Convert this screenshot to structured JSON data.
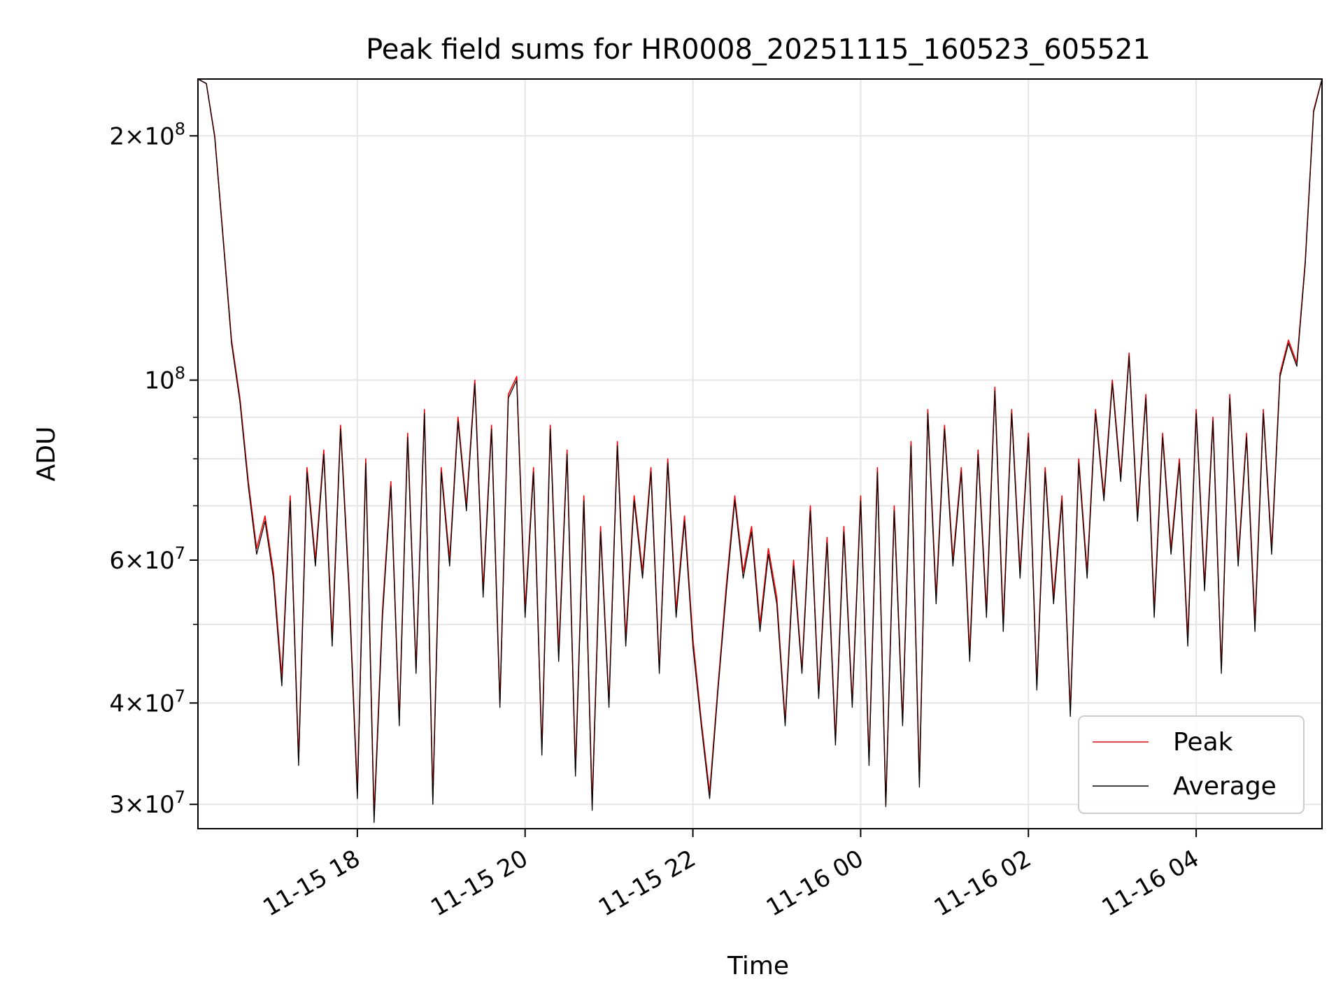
{
  "chart_data": {
    "type": "line",
    "title": "Peak field sums for HR0008_20251115_160523_605521",
    "xlabel": "Time",
    "ylabel": "ADU",
    "yscale": "log",
    "ylim": [
      28000000,
      235000000
    ],
    "xlim_hours": [
      16.1,
      29.5
    ],
    "grid": true,
    "legend_position": "lower-right",
    "x_ticks": [
      {
        "hour": 18,
        "label": "11-15 18"
      },
      {
        "hour": 20,
        "label": "11-15 20"
      },
      {
        "hour": 22,
        "label": "11-15 22"
      },
      {
        "hour": 24,
        "label": "11-16 00"
      },
      {
        "hour": 26,
        "label": "11-16 02"
      },
      {
        "hour": 28,
        "label": "11-16 04"
      }
    ],
    "y_major_ticks": [
      {
        "value": 100000000,
        "label": "10",
        "exp": "8",
        "mant": ""
      },
      {
        "value": 30000000,
        "label": "3",
        "exp": "7",
        "mant": "3×10"
      },
      {
        "value": 40000000,
        "label": "4",
        "exp": "7",
        "mant": "4×10"
      },
      {
        "value": 60000000,
        "label": "6",
        "exp": "7",
        "mant": "6×10"
      },
      {
        "value": 200000000,
        "label": "2",
        "exp": "8",
        "mant": "2×10"
      }
    ],
    "y_minor_ticks": [
      50000000,
      70000000,
      80000000,
      90000000
    ],
    "series": [
      {
        "name": "Peak",
        "color": "#ff0000",
        "points": [
          [
            16.1,
            235000000
          ],
          [
            16.2,
            232000000
          ],
          [
            16.3,
            200000000
          ],
          [
            16.4,
            150000000
          ],
          [
            16.5,
            112000000
          ],
          [
            16.6,
            95000000
          ],
          [
            16.7,
            75000000
          ],
          [
            16.8,
            62000000
          ],
          [
            16.9,
            68000000
          ],
          [
            17.0,
            58000000
          ],
          [
            17.1,
            43000000
          ],
          [
            17.2,
            72000000
          ],
          [
            17.3,
            34000000
          ],
          [
            17.4,
            78000000
          ],
          [
            17.5,
            60000000
          ],
          [
            17.6,
            82000000
          ],
          [
            17.7,
            48000000
          ],
          [
            17.8,
            88000000
          ],
          [
            17.9,
            56000000
          ],
          [
            18.0,
            31000000
          ],
          [
            18.1,
            80000000
          ],
          [
            18.2,
            29000000
          ],
          [
            18.3,
            52000000
          ],
          [
            18.4,
            75000000
          ],
          [
            18.5,
            38000000
          ],
          [
            18.6,
            86000000
          ],
          [
            18.7,
            44000000
          ],
          [
            18.8,
            92000000
          ],
          [
            18.9,
            30500000
          ],
          [
            19.0,
            78000000
          ],
          [
            19.1,
            60000000
          ],
          [
            19.2,
            90000000
          ],
          [
            19.3,
            70000000
          ],
          [
            19.4,
            100000000
          ],
          [
            19.5,
            55000000
          ],
          [
            19.6,
            88000000
          ],
          [
            19.7,
            40000000
          ],
          [
            19.8,
            96000000
          ],
          [
            19.9,
            101000000
          ],
          [
            20.0,
            52000000
          ],
          [
            20.1,
            78000000
          ],
          [
            20.2,
            35000000
          ],
          [
            20.3,
            88000000
          ],
          [
            20.4,
            46000000
          ],
          [
            20.5,
            82000000
          ],
          [
            20.6,
            33000000
          ],
          [
            20.7,
            72000000
          ],
          [
            20.8,
            30000000
          ],
          [
            20.9,
            66000000
          ],
          [
            21.0,
            40000000
          ],
          [
            21.1,
            84000000
          ],
          [
            21.2,
            48000000
          ],
          [
            21.3,
            72000000
          ],
          [
            21.4,
            58000000
          ],
          [
            21.5,
            78000000
          ],
          [
            21.6,
            44000000
          ],
          [
            21.7,
            80000000
          ],
          [
            21.8,
            52000000
          ],
          [
            21.9,
            68000000
          ],
          [
            22.0,
            48000000
          ],
          [
            22.1,
            38000000
          ],
          [
            22.2,
            31000000
          ],
          [
            22.3,
            42000000
          ],
          [
            22.4,
            56000000
          ],
          [
            22.5,
            72000000
          ],
          [
            22.6,
            58000000
          ],
          [
            22.7,
            66000000
          ],
          [
            22.8,
            50000000
          ],
          [
            22.9,
            62000000
          ],
          [
            23.0,
            54000000
          ],
          [
            23.1,
            38000000
          ],
          [
            23.2,
            60000000
          ],
          [
            23.3,
            44000000
          ],
          [
            23.4,
            70000000
          ],
          [
            23.5,
            41000000
          ],
          [
            23.6,
            64000000
          ],
          [
            23.7,
            36000000
          ],
          [
            23.8,
            66000000
          ],
          [
            23.9,
            40000000
          ],
          [
            24.0,
            72000000
          ],
          [
            24.1,
            34000000
          ],
          [
            24.2,
            78000000
          ],
          [
            24.3,
            30000000
          ],
          [
            24.4,
            70000000
          ],
          [
            24.5,
            38000000
          ],
          [
            24.6,
            84000000
          ],
          [
            24.7,
            32000000
          ],
          [
            24.8,
            92000000
          ],
          [
            24.9,
            54000000
          ],
          [
            25.0,
            88000000
          ],
          [
            25.1,
            60000000
          ],
          [
            25.2,
            78000000
          ],
          [
            25.3,
            46000000
          ],
          [
            25.4,
            82000000
          ],
          [
            25.5,
            52000000
          ],
          [
            25.6,
            98000000
          ],
          [
            25.7,
            50000000
          ],
          [
            25.8,
            92000000
          ],
          [
            25.9,
            58000000
          ],
          [
            26.0,
            86000000
          ],
          [
            26.1,
            42000000
          ],
          [
            26.2,
            78000000
          ],
          [
            26.3,
            54000000
          ],
          [
            26.4,
            72000000
          ],
          [
            26.5,
            39000000
          ],
          [
            26.6,
            80000000
          ],
          [
            26.7,
            58000000
          ],
          [
            26.8,
            92000000
          ],
          [
            26.9,
            72000000
          ],
          [
            27.0,
            100000000
          ],
          [
            27.1,
            76000000
          ],
          [
            27.2,
            108000000
          ],
          [
            27.3,
            68000000
          ],
          [
            27.4,
            96000000
          ],
          [
            27.5,
            52000000
          ],
          [
            27.6,
            86000000
          ],
          [
            27.7,
            62000000
          ],
          [
            27.8,
            80000000
          ],
          [
            27.9,
            48000000
          ],
          [
            28.0,
            92000000
          ],
          [
            28.1,
            56000000
          ],
          [
            28.2,
            90000000
          ],
          [
            28.3,
            44000000
          ],
          [
            28.4,
            96000000
          ],
          [
            28.5,
            60000000
          ],
          [
            28.6,
            86000000
          ],
          [
            28.7,
            50000000
          ],
          [
            28.8,
            92000000
          ],
          [
            28.9,
            62000000
          ],
          [
            29.0,
            102000000
          ],
          [
            29.1,
            112000000
          ],
          [
            29.2,
            105000000
          ],
          [
            29.3,
            140000000
          ],
          [
            29.4,
            215000000
          ],
          [
            29.5,
            235000000
          ]
        ]
      },
      {
        "name": "Average",
        "color": "#000000",
        "points": [
          [
            16.1,
            235000000
          ],
          [
            16.2,
            232000000
          ],
          [
            16.3,
            199000000
          ],
          [
            16.4,
            149000000
          ],
          [
            16.5,
            111000000
          ],
          [
            16.6,
            94000000
          ],
          [
            16.7,
            74000000
          ],
          [
            16.8,
            61000000
          ],
          [
            16.9,
            67000000
          ],
          [
            17.0,
            57000000
          ],
          [
            17.1,
            42000000
          ],
          [
            17.2,
            71000000
          ],
          [
            17.3,
            33500000
          ],
          [
            17.4,
            77000000
          ],
          [
            17.5,
            59000000
          ],
          [
            17.6,
            81000000
          ],
          [
            17.7,
            47000000
          ],
          [
            17.8,
            87000000
          ],
          [
            17.9,
            55000000
          ],
          [
            18.0,
            30500000
          ],
          [
            18.1,
            79000000
          ],
          [
            18.2,
            28500000
          ],
          [
            18.3,
            51000000
          ],
          [
            18.4,
            74000000
          ],
          [
            18.5,
            37500000
          ],
          [
            18.6,
            85000000
          ],
          [
            18.7,
            43500000
          ],
          [
            18.8,
            91000000
          ],
          [
            18.9,
            30000000
          ],
          [
            19.0,
            77000000
          ],
          [
            19.1,
            59000000
          ],
          [
            19.2,
            89000000
          ],
          [
            19.3,
            69000000
          ],
          [
            19.4,
            99000000
          ],
          [
            19.5,
            54000000
          ],
          [
            19.6,
            87000000
          ],
          [
            19.7,
            39500000
          ],
          [
            19.8,
            95000000
          ],
          [
            19.9,
            100000000
          ],
          [
            20.0,
            51000000
          ],
          [
            20.1,
            77000000
          ],
          [
            20.2,
            34500000
          ],
          [
            20.3,
            87000000
          ],
          [
            20.4,
            45000000
          ],
          [
            20.5,
            81000000
          ],
          [
            20.6,
            32500000
          ],
          [
            20.7,
            71000000
          ],
          [
            20.8,
            29500000
          ],
          [
            20.9,
            65000000
          ],
          [
            21.0,
            39500000
          ],
          [
            21.1,
            83000000
          ],
          [
            21.2,
            47000000
          ],
          [
            21.3,
            71000000
          ],
          [
            21.4,
            57000000
          ],
          [
            21.5,
            77000000
          ],
          [
            21.6,
            43500000
          ],
          [
            21.7,
            79000000
          ],
          [
            21.8,
            51000000
          ],
          [
            21.9,
            67000000
          ],
          [
            22.0,
            47000000
          ],
          [
            22.1,
            37500000
          ],
          [
            22.2,
            30500000
          ],
          [
            22.3,
            41500000
          ],
          [
            22.4,
            55000000
          ],
          [
            22.5,
            71000000
          ],
          [
            22.6,
            57000000
          ],
          [
            22.7,
            65000000
          ],
          [
            22.8,
            49000000
          ],
          [
            22.9,
            61000000
          ],
          [
            23.0,
            53000000
          ],
          [
            23.1,
            37500000
          ],
          [
            23.2,
            59000000
          ],
          [
            23.3,
            43500000
          ],
          [
            23.4,
            69000000
          ],
          [
            23.5,
            40500000
          ],
          [
            23.6,
            63000000
          ],
          [
            23.7,
            35500000
          ],
          [
            23.8,
            65000000
          ],
          [
            23.9,
            39500000
          ],
          [
            24.0,
            71000000
          ],
          [
            24.1,
            33500000
          ],
          [
            24.2,
            77000000
          ],
          [
            24.3,
            29800000
          ],
          [
            24.4,
            69000000
          ],
          [
            24.5,
            37500000
          ],
          [
            24.6,
            83000000
          ],
          [
            24.7,
            31500000
          ],
          [
            24.8,
            91000000
          ],
          [
            24.9,
            53000000
          ],
          [
            25.0,
            87000000
          ],
          [
            25.1,
            59000000
          ],
          [
            25.2,
            77000000
          ],
          [
            25.3,
            45000000
          ],
          [
            25.4,
            81000000
          ],
          [
            25.5,
            51000000
          ],
          [
            25.6,
            97000000
          ],
          [
            25.7,
            49000000
          ],
          [
            25.8,
            91000000
          ],
          [
            25.9,
            57000000
          ],
          [
            26.0,
            85000000
          ],
          [
            26.1,
            41500000
          ],
          [
            26.2,
            77000000
          ],
          [
            26.3,
            53000000
          ],
          [
            26.4,
            71000000
          ],
          [
            26.5,
            38500000
          ],
          [
            26.6,
            79000000
          ],
          [
            26.7,
            57000000
          ],
          [
            26.8,
            91000000
          ],
          [
            26.9,
            71000000
          ],
          [
            27.0,
            99000000
          ],
          [
            27.1,
            75000000
          ],
          [
            27.2,
            107000000
          ],
          [
            27.3,
            67000000
          ],
          [
            27.4,
            95000000
          ],
          [
            27.5,
            51000000
          ],
          [
            27.6,
            85000000
          ],
          [
            27.7,
            61000000
          ],
          [
            27.8,
            79000000
          ],
          [
            27.9,
            47000000
          ],
          [
            28.0,
            91000000
          ],
          [
            28.1,
            55000000
          ],
          [
            28.2,
            89000000
          ],
          [
            28.3,
            43500000
          ],
          [
            28.4,
            95000000
          ],
          [
            28.5,
            59000000
          ],
          [
            28.6,
            85000000
          ],
          [
            28.7,
            49000000
          ],
          [
            28.8,
            91000000
          ],
          [
            28.9,
            61000000
          ],
          [
            29.0,
            101000000
          ],
          [
            29.1,
            111000000
          ],
          [
            29.2,
            104000000
          ],
          [
            29.3,
            139000000
          ],
          [
            29.4,
            214000000
          ],
          [
            29.5,
            235000000
          ]
        ]
      }
    ]
  }
}
